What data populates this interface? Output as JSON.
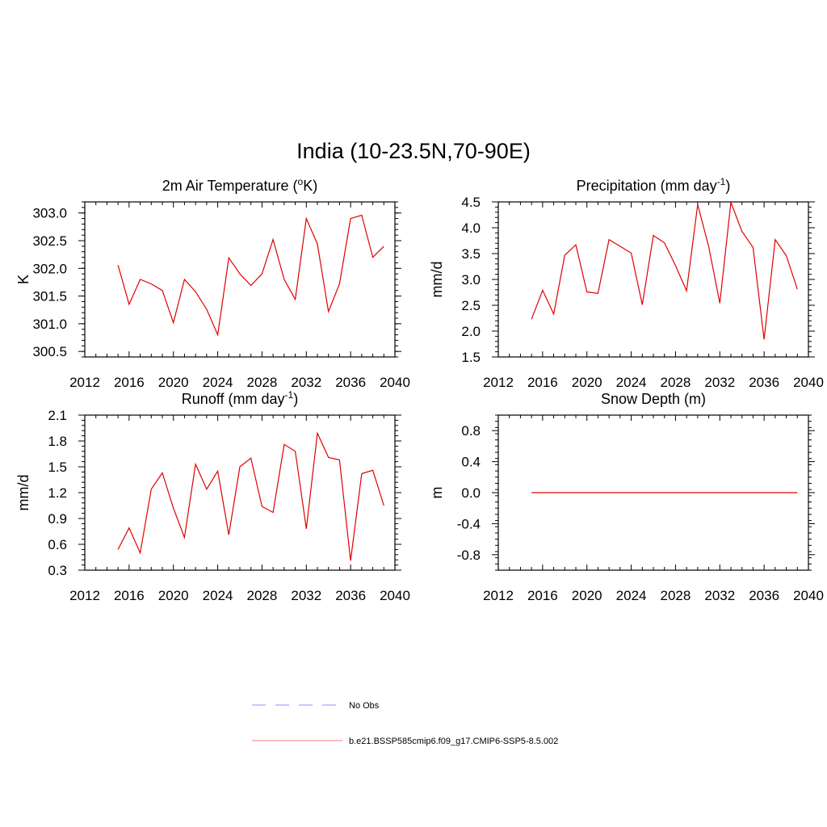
{
  "figure": {
    "title": "India (10-23.5N,70-90E)"
  },
  "legend": {
    "entries": [
      {
        "label": "No Obs",
        "color": "#a8a8ff",
        "dash": true
      },
      {
        "label": "b.e21.BSSP585cmip6.f09_g17.CMIP6-SSP5-8.5.002",
        "color": "#ff9090",
        "dash": false
      }
    ]
  },
  "chart_data": [
    {
      "type": "line",
      "title_main": "2m Air Temperature (",
      "title_sup": "o",
      "title_rest": "K)",
      "ylabel": "K",
      "xlim": [
        2012,
        2040
      ],
      "ylim": [
        300.4,
        303.2
      ],
      "xticks": [
        2012,
        2016,
        2020,
        2024,
        2028,
        2032,
        2036,
        2040
      ],
      "yticks": [
        300.5,
        301.0,
        301.5,
        302.0,
        302.5,
        303.0
      ],
      "ytick_labels": [
        "300.5",
        "301.0",
        "301.5",
        "302.0",
        "302.5",
        "303.0"
      ],
      "yminor_step": 0.1,
      "series": [
        {
          "color": "#e00000",
          "x": [
            2015,
            2016,
            2017,
            2018,
            2019,
            2020,
            2021,
            2022,
            2023,
            2024,
            2025,
            2026,
            2027,
            2028,
            2029,
            2030,
            2031,
            2032,
            2033,
            2034,
            2035,
            2036,
            2037,
            2038,
            2039
          ],
          "values": [
            302.06,
            301.35,
            301.8,
            301.72,
            301.6,
            301.02,
            301.8,
            301.58,
            301.26,
            300.8,
            302.19,
            301.9,
            301.69,
            301.9,
            302.52,
            301.8,
            301.44,
            302.9,
            302.44,
            301.22,
            301.72,
            302.9,
            302.96,
            302.2,
            302.4
          ]
        }
      ]
    },
    {
      "type": "line",
      "title_main": "Precipitation (mm day",
      "title_sup": "-1",
      "title_rest": ")",
      "ylabel": "mm/d",
      "xlim": [
        2012,
        2040
      ],
      "ylim": [
        1.5,
        4.5
      ],
      "xticks": [
        2012,
        2016,
        2020,
        2024,
        2028,
        2032,
        2036,
        2040
      ],
      "yticks": [
        1.5,
        2.0,
        2.5,
        3.0,
        3.5,
        4.0,
        4.5
      ],
      "ytick_labels": [
        "1.5",
        "2.0",
        "2.5",
        "3.0",
        "3.5",
        "4.0",
        "4.5"
      ],
      "yminor_step": 0.1,
      "series": [
        {
          "color": "#e00000",
          "x": [
            2015,
            2016,
            2017,
            2018,
            2019,
            2020,
            2021,
            2022,
            2023,
            2024,
            2025,
            2026,
            2027,
            2028,
            2029,
            2030,
            2031,
            2032,
            2033,
            2034,
            2035,
            2036,
            2037,
            2038,
            2039
          ],
          "values": [
            2.23,
            2.79,
            2.33,
            3.47,
            3.67,
            2.76,
            2.73,
            3.77,
            3.64,
            3.51,
            2.51,
            3.85,
            3.71,
            3.27,
            2.78,
            4.45,
            3.63,
            2.54,
            4.49,
            3.93,
            3.62,
            1.84,
            3.77,
            3.46,
            2.81
          ]
        }
      ]
    },
    {
      "type": "line",
      "title_main": "Runoff (mm day",
      "title_sup": "-1",
      "title_rest": ")",
      "ylabel": "mm/d",
      "xlim": [
        2012,
        2040
      ],
      "ylim": [
        0.3,
        2.1
      ],
      "xticks": [
        2012,
        2016,
        2020,
        2024,
        2028,
        2032,
        2036,
        2040
      ],
      "yticks": [
        0.3,
        0.6,
        0.9,
        1.2,
        1.5,
        1.8,
        2.1
      ],
      "ytick_labels": [
        "0.3",
        "0.6",
        "0.9",
        "1.2",
        "1.5",
        "1.8",
        "2.1"
      ],
      "yminor_step": 0.06,
      "series": [
        {
          "color": "#e00000",
          "x": [
            2015,
            2016,
            2017,
            2018,
            2019,
            2020,
            2021,
            2022,
            2023,
            2024,
            2025,
            2026,
            2027,
            2028,
            2029,
            2030,
            2031,
            2032,
            2033,
            2034,
            2035,
            2036,
            2037,
            2038,
            2039
          ],
          "values": [
            0.54,
            0.79,
            0.5,
            1.24,
            1.43,
            1.02,
            0.68,
            1.53,
            1.24,
            1.45,
            0.71,
            1.5,
            1.6,
            1.04,
            0.97,
            1.76,
            1.68,
            0.78,
            1.89,
            1.61,
            1.58,
            0.41,
            1.42,
            1.46,
            1.05
          ]
        }
      ]
    },
    {
      "type": "line",
      "title_main": "Snow Depth (m)",
      "title_sup": "",
      "title_rest": "",
      "ylabel": "m",
      "xlim": [
        2012,
        2040
      ],
      "ylim": [
        -1.0,
        1.0
      ],
      "xticks": [
        2012,
        2016,
        2020,
        2024,
        2028,
        2032,
        2036,
        2040
      ],
      "yticks": [
        -0.8,
        -0.4,
        0.0,
        0.4,
        0.8
      ],
      "ytick_labels": [
        "-0.8",
        "-0.4",
        "0.0",
        "0.4",
        "0.8"
      ],
      "yminor_step": 0.08,
      "series": [
        {
          "color": "#e00000",
          "x": [
            2015,
            2016,
            2017,
            2018,
            2019,
            2020,
            2021,
            2022,
            2023,
            2024,
            2025,
            2026,
            2027,
            2028,
            2029,
            2030,
            2031,
            2032,
            2033,
            2034,
            2035,
            2036,
            2037,
            2038,
            2039
          ],
          "values": [
            0,
            0,
            0,
            0,
            0,
            0,
            0,
            0,
            0,
            0,
            0,
            0,
            0,
            0,
            0,
            0,
            0,
            0,
            0,
            0,
            0,
            0,
            0,
            0,
            0
          ]
        }
      ]
    }
  ]
}
